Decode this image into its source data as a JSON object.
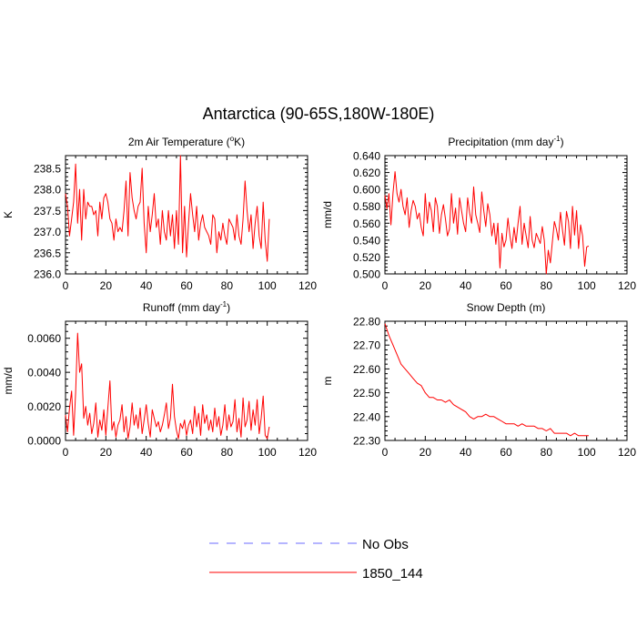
{
  "figure": {
    "title": "Antarctica (90-65S,180W-180E)"
  },
  "legend": {
    "entries": [
      {
        "label": "No Obs",
        "color": "#6b6bff",
        "style": "dashed"
      },
      {
        "label": "1850_144",
        "color": "#ff0000",
        "style": "solid"
      }
    ]
  },
  "chart_data": [
    {
      "type": "line",
      "title": "2m Air Temperature (",
      "title_sup": "o",
      "title_tail": "K)",
      "ylabel": "K",
      "xlim": [
        0,
        120
      ],
      "ylim": [
        236.0,
        238.8
      ],
      "xticks": [
        0,
        20,
        40,
        60,
        80,
        100,
        120
      ],
      "yticks": [
        236.0,
        236.5,
        237.0,
        237.5,
        238.0,
        238.5
      ],
      "ytick_labels": [
        "236.0",
        "236.5",
        "237.0",
        "237.5",
        "238.0",
        "238.5"
      ],
      "series": [
        {
          "name": "1850_144",
          "color": "#ff0000",
          "x": [
            0,
            1,
            2,
            3,
            4,
            5,
            6,
            7,
            8,
            9,
            10,
            11,
            12,
            13,
            14,
            15,
            16,
            17,
            18,
            19,
            20,
            21,
            22,
            23,
            24,
            25,
            26,
            27,
            28,
            29,
            30,
            31,
            32,
            33,
            34,
            35,
            36,
            37,
            38,
            39,
            40,
            41,
            42,
            43,
            44,
            45,
            46,
            47,
            48,
            49,
            50,
            51,
            52,
            53,
            54,
            55,
            56,
            57,
            58,
            59,
            60,
            61,
            62,
            63,
            64,
            65,
            66,
            67,
            68,
            69,
            70,
            71,
            72,
            73,
            74,
            75,
            76,
            77,
            78,
            79,
            80,
            81,
            82,
            83,
            84,
            85,
            86,
            87,
            88,
            89,
            90,
            91,
            92,
            93,
            94,
            95,
            96,
            97,
            98,
            99,
            100,
            101
          ],
          "y": [
            237.9,
            237.6,
            236.9,
            237.3,
            237.7,
            238.6,
            237.2,
            238.0,
            236.8,
            238.0,
            237.3,
            237.7,
            237.6,
            237.6,
            237.4,
            237.5,
            236.9,
            237.7,
            237.3,
            237.8,
            237.9,
            237.7,
            237.3,
            237.2,
            236.8,
            237.3,
            237.0,
            237.1,
            237.0,
            237.5,
            238.2,
            236.9,
            238.4,
            237.8,
            237.5,
            237.3,
            237.6,
            237.7,
            238.5,
            237.2,
            236.5,
            237.6,
            237.0,
            237.4,
            237.9,
            237.1,
            237.3,
            236.7,
            237.5,
            237.0,
            236.8,
            237.5,
            236.9,
            237.4,
            236.6,
            237.5,
            236.7,
            238.8,
            236.5,
            237.6,
            236.4,
            237.2,
            237.9,
            237.4,
            237.0,
            237.6,
            236.8,
            237.2,
            237.4,
            237.1,
            237.0,
            236.9,
            236.7,
            237.4,
            237.3,
            236.5,
            237.0,
            236.8,
            237.2,
            236.9,
            236.7,
            237.3,
            237.2,
            237.1,
            236.8,
            237.4,
            236.9,
            236.7,
            237.3,
            238.2,
            237.5,
            237.0,
            237.4,
            236.6,
            237.2,
            237.6,
            236.9,
            236.6,
            237.7,
            236.8,
            236.3,
            237.3
          ]
        }
      ]
    },
    {
      "type": "line",
      "title": "Precipitation (mm day",
      "title_sup": "-1",
      "title_tail": ")",
      "ylabel": "mm/d",
      "xlim": [
        0,
        120
      ],
      "ylim": [
        0.5,
        0.64
      ],
      "xticks": [
        0,
        20,
        40,
        60,
        80,
        100,
        120
      ],
      "yticks": [
        0.5,
        0.52,
        0.54,
        0.56,
        0.58,
        0.6,
        0.62,
        0.64
      ],
      "ytick_labels": [
        "0.500",
        "0.520",
        "0.540",
        "0.560",
        "0.580",
        "0.600",
        "0.620",
        "0.640"
      ],
      "series": [
        {
          "name": "1850_144",
          "color": "#ff0000",
          "x": [
            0,
            1,
            2,
            3,
            4,
            5,
            6,
            7,
            8,
            9,
            10,
            11,
            12,
            13,
            14,
            15,
            16,
            17,
            18,
            19,
            20,
            21,
            22,
            23,
            24,
            25,
            26,
            27,
            28,
            29,
            30,
            31,
            32,
            33,
            34,
            35,
            36,
            37,
            38,
            39,
            40,
            41,
            42,
            43,
            44,
            45,
            46,
            47,
            48,
            49,
            50,
            51,
            52,
            53,
            54,
            55,
            56,
            57,
            58,
            59,
            60,
            61,
            62,
            63,
            64,
            65,
            66,
            67,
            68,
            69,
            70,
            71,
            72,
            73,
            74,
            75,
            76,
            77,
            78,
            79,
            80,
            81,
            82,
            83,
            84,
            85,
            86,
            87,
            88,
            89,
            90,
            91,
            92,
            93,
            94,
            95,
            96,
            97,
            98,
            99,
            100,
            101
          ],
          "y": [
            0.593,
            0.577,
            0.595,
            0.558,
            0.596,
            0.621,
            0.595,
            0.585,
            0.6,
            0.58,
            0.57,
            0.59,
            0.555,
            0.575,
            0.587,
            0.58,
            0.565,
            0.572,
            0.555,
            0.545,
            0.595,
            0.56,
            0.585,
            0.575,
            0.55,
            0.59,
            0.58,
            0.548,
            0.57,
            0.582,
            0.565,
            0.545,
            0.553,
            0.595,
            0.56,
            0.578,
            0.547,
            0.59,
            0.575,
            0.56,
            0.55,
            0.59,
            0.572,
            0.56,
            0.603,
            0.57,
            0.56,
            0.549,
            0.597,
            0.575,
            0.556,
            0.583,
            0.57,
            0.545,
            0.56,
            0.535,
            0.56,
            0.507,
            0.548,
            0.532,
            0.54,
            0.566,
            0.545,
            0.53,
            0.555,
            0.537,
            0.56,
            0.58,
            0.535,
            0.56,
            0.545,
            0.531,
            0.568,
            0.54,
            0.531,
            0.548,
            0.542,
            0.536,
            0.556,
            0.54,
            0.5,
            0.528,
            0.513,
            0.538,
            0.562,
            0.553,
            0.54,
            0.573,
            0.552,
            0.534,
            0.574,
            0.562,
            0.53,
            0.58,
            0.546,
            0.575,
            0.53,
            0.558,
            0.545,
            0.509,
            0.532,
            0.533
          ]
        }
      ]
    },
    {
      "type": "line",
      "title": "Runoff (mm day",
      "title_sup": "-1",
      "title_tail": ")",
      "ylabel": "mm/d",
      "xlim": [
        0,
        120
      ],
      "ylim": [
        0,
        0.007
      ],
      "xticks": [
        0,
        20,
        40,
        60,
        80,
        100,
        120
      ],
      "yticks": [
        0,
        0.002,
        0.004,
        0.006
      ],
      "ytick_labels": [
        "0.0000",
        "0.0020",
        "0.0040",
        "0.0060"
      ],
      "series": [
        {
          "name": "1850_144",
          "color": "#ff0000",
          "x": [
            0,
            1,
            2,
            3,
            4,
            5,
            6,
            7,
            8,
            9,
            10,
            11,
            12,
            13,
            14,
            15,
            16,
            17,
            18,
            19,
            20,
            21,
            22,
            23,
            24,
            25,
            26,
            27,
            28,
            29,
            30,
            31,
            32,
            33,
            34,
            35,
            36,
            37,
            38,
            39,
            40,
            41,
            42,
            43,
            44,
            45,
            46,
            47,
            48,
            49,
            50,
            51,
            52,
            53,
            54,
            55,
            56,
            57,
            58,
            59,
            60,
            61,
            62,
            63,
            64,
            65,
            66,
            67,
            68,
            69,
            70,
            71,
            72,
            73,
            74,
            75,
            76,
            77,
            78,
            79,
            80,
            81,
            82,
            83,
            84,
            85,
            86,
            87,
            88,
            89,
            90,
            91,
            92,
            93,
            94,
            95,
            96,
            97,
            98,
            99,
            100,
            101
          ],
          "y": [
            0.0015,
            0.0005,
            0.0019,
            0.0029,
            0.0003,
            0.0028,
            0.0063,
            0.004,
            0.0045,
            0.0013,
            0.002,
            0.0009,
            0.0016,
            0.0004,
            0.001,
            0.0022,
            0.0002,
            0.0012,
            0.0006,
            0.0018,
            0.0003,
            0.0019,
            0.0035,
            0.0006,
            0.0011,
            0.0002,
            0.0009,
            0.0012,
            0.0021,
            0.0005,
            0.0014,
            0.0001,
            0.0008,
            0.0022,
            0.0009,
            0.0015,
            0.0007,
            0.0019,
            0.0004,
            0.0012,
            0.0021,
            0.001,
            0.0002,
            0.0018,
            0.0013,
            0.0008,
            0.0011,
            0.0005,
            0.0009,
            0.0015,
            0.0022,
            0.0007,
            0.0013,
            0.0033,
            0.0014,
            0.0006,
            0.0001,
            0.001,
            0.0007,
            0.0012,
            0.0003,
            0.0009,
            0.0012,
            0.0004,
            0.002,
            0.0008,
            0.0016,
            0.0003,
            0.0021,
            0.001,
            0.0015,
            0.0006,
            0.0012,
            0.0005,
            0.0019,
            0.0008,
            0.0014,
            0.0003,
            0.0009,
            0.0021,
            0.0006,
            0.0015,
            0.0008,
            0.0011,
            0.0024,
            0.0005,
            0.0013,
            0.0002,
            0.0025,
            0.0008,
            0.0012,
            0.0023,
            0.0006,
            0.0018,
            0.0009,
            0.0024,
            0.0004,
            0.0013,
            0.0026,
            0.0003,
            0.0001,
            0.0008
          ]
        }
      ]
    },
    {
      "type": "line",
      "title": "Snow Depth (m)",
      "title_sup": "",
      "title_tail": "",
      "ylabel": "m",
      "xlim": [
        0,
        120
      ],
      "ylim": [
        22.3,
        22.8
      ],
      "xticks": [
        0,
        20,
        40,
        60,
        80,
        100,
        120
      ],
      "yticks": [
        22.3,
        22.4,
        22.5,
        22.6,
        22.7,
        22.8
      ],
      "ytick_labels": [
        "22.30",
        "22.40",
        "22.50",
        "22.60",
        "22.70",
        "22.80"
      ],
      "series": [
        {
          "name": "1850_144",
          "color": "#ff0000",
          "x": [
            0,
            2,
            4,
            6,
            8,
            10,
            12,
            14,
            16,
            18,
            20,
            22,
            24,
            26,
            28,
            30,
            32,
            34,
            36,
            38,
            40,
            42,
            44,
            46,
            48,
            50,
            52,
            54,
            56,
            58,
            60,
            62,
            64,
            66,
            68,
            70,
            72,
            74,
            76,
            78,
            80,
            82,
            84,
            86,
            88,
            90,
            92,
            94,
            96,
            98,
            100,
            101
          ],
          "y": [
            22.79,
            22.74,
            22.7,
            22.66,
            22.62,
            22.6,
            22.58,
            22.56,
            22.54,
            22.53,
            22.5,
            22.48,
            22.48,
            22.47,
            22.47,
            22.46,
            22.47,
            22.45,
            22.44,
            22.43,
            22.42,
            22.4,
            22.39,
            22.4,
            22.4,
            22.41,
            22.4,
            22.4,
            22.39,
            22.38,
            22.37,
            22.37,
            22.37,
            22.36,
            22.37,
            22.36,
            22.36,
            22.36,
            22.35,
            22.35,
            22.34,
            22.35,
            22.33,
            22.33,
            22.33,
            22.33,
            22.32,
            22.33,
            22.32,
            22.32,
            22.32,
            22.32
          ]
        }
      ]
    }
  ]
}
